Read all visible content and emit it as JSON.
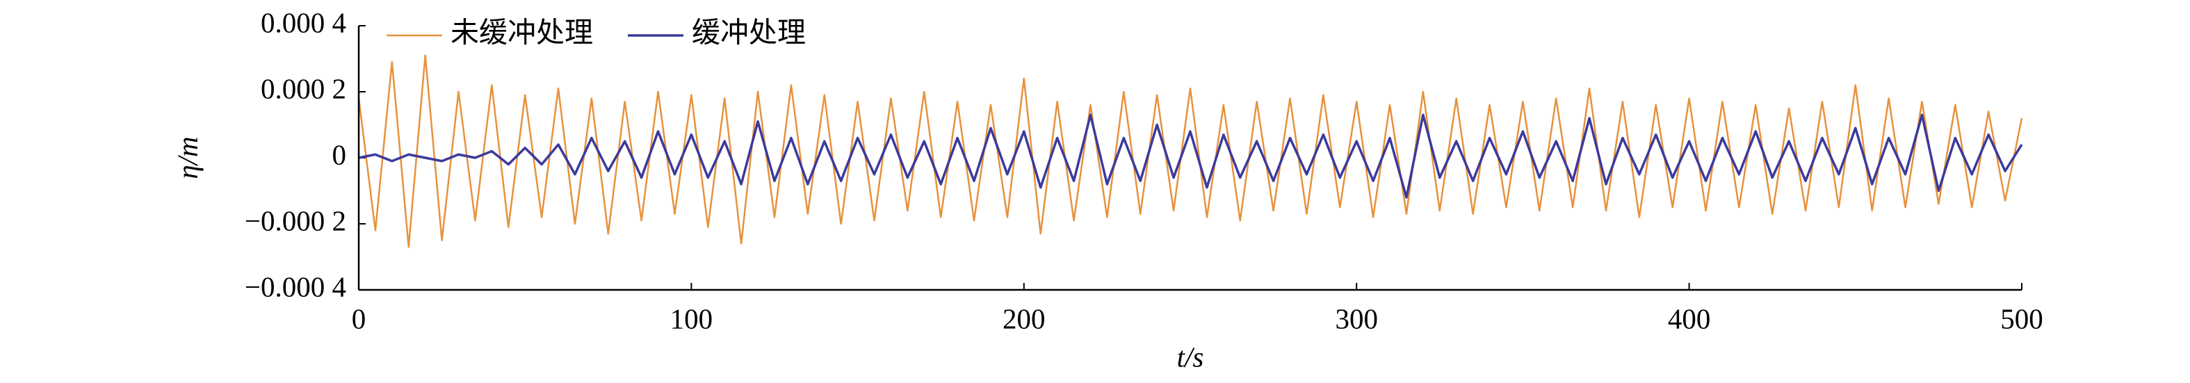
{
  "chart_data": {
    "type": "line",
    "xlabel": "t/s",
    "ylabel": "η/m",
    "x": [
      0,
      5,
      10,
      15,
      20,
      25,
      30,
      35,
      40,
      45,
      50,
      55,
      60,
      65,
      70,
      75,
      80,
      85,
      90,
      95,
      100,
      105,
      110,
      115,
      120,
      125,
      130,
      135,
      140,
      145,
      150,
      155,
      160,
      165,
      170,
      175,
      180,
      185,
      190,
      195,
      200,
      205,
      210,
      215,
      220,
      225,
      230,
      235,
      240,
      245,
      250,
      255,
      260,
      265,
      270,
      275,
      280,
      285,
      290,
      295,
      300,
      305,
      310,
      315,
      320,
      325,
      330,
      335,
      340,
      345,
      350,
      355,
      360,
      365,
      370,
      375,
      380,
      385,
      390,
      395,
      400,
      405,
      410,
      415,
      420,
      425,
      430,
      435,
      440,
      445,
      450,
      455,
      460,
      465,
      470,
      475,
      480,
      485,
      490,
      495,
      500
    ],
    "series": [
      {
        "name": "未缓冲处理",
        "color": "#e8913a",
        "values": [
          0.00018,
          -0.00022,
          0.00029,
          -0.00027,
          0.00031,
          -0.00025,
          0.0002,
          -0.00019,
          0.00022,
          -0.00021,
          0.00019,
          -0.00018,
          0.00021,
          -0.0002,
          0.00018,
          -0.00023,
          0.00017,
          -0.00019,
          0.0002,
          -0.00017,
          0.00019,
          -0.00021,
          0.00018,
          -0.00026,
          0.0002,
          -0.00018,
          0.00022,
          -0.00017,
          0.00019,
          -0.0002,
          0.00017,
          -0.00019,
          0.00018,
          -0.00016,
          0.0002,
          -0.00018,
          0.00017,
          -0.00019,
          0.00016,
          -0.00018,
          0.00024,
          -0.00023,
          0.00017,
          -0.00019,
          0.00016,
          -0.00018,
          0.0002,
          -0.00017,
          0.00019,
          -0.00016,
          0.00021,
          -0.00018,
          0.00016,
          -0.00019,
          0.00017,
          -0.00016,
          0.00018,
          -0.00017,
          0.00019,
          -0.00015,
          0.00017,
          -0.00018,
          0.00016,
          -0.00017,
          0.0002,
          -0.00016,
          0.00018,
          -0.00017,
          0.00016,
          -0.00015,
          0.00017,
          -0.00016,
          0.00018,
          -0.00015,
          0.00021,
          -0.00016,
          0.00017,
          -0.00018,
          0.00016,
          -0.00015,
          0.00018,
          -0.00016,
          0.00017,
          -0.00015,
          0.00016,
          -0.00017,
          0.00015,
          -0.00016,
          0.00017,
          -0.00015,
          0.00022,
          -0.00016,
          0.00018,
          -0.00015,
          0.00017,
          -0.00014,
          0.00016,
          -0.00015,
          0.00014,
          -0.00013,
          0.00012
        ]
      },
      {
        "name": "缓冲处理",
        "color": "#3a3a9e",
        "values": [
          0,
          1e-05,
          -1e-05,
          1e-05,
          0,
          -1e-05,
          1e-05,
          0,
          2e-05,
          -2e-05,
          3e-05,
          -2e-05,
          4e-05,
          -5e-05,
          6e-05,
          -4e-05,
          5e-05,
          -6e-05,
          8e-05,
          -5e-05,
          7e-05,
          -6e-05,
          5e-05,
          -8e-05,
          0.00011,
          -7e-05,
          6e-05,
          -8e-05,
          5e-05,
          -7e-05,
          6e-05,
          -5e-05,
          7e-05,
          -6e-05,
          5e-05,
          -8e-05,
          6e-05,
          -7e-05,
          9e-05,
          -5e-05,
          8e-05,
          -9e-05,
          6e-05,
          -7e-05,
          0.00013,
          -8e-05,
          6e-05,
          -7e-05,
          0.0001,
          -6e-05,
          8e-05,
          -9e-05,
          7e-05,
          -6e-05,
          5e-05,
          -7e-05,
          6e-05,
          -5e-05,
          7e-05,
          -6e-05,
          5e-05,
          -7e-05,
          6e-05,
          -0.00012,
          0.00013,
          -6e-05,
          5e-05,
          -7e-05,
          6e-05,
          -5e-05,
          8e-05,
          -6e-05,
          5e-05,
          -7e-05,
          0.00012,
          -8e-05,
          6e-05,
          -5e-05,
          7e-05,
          -6e-05,
          5e-05,
          -7e-05,
          6e-05,
          -5e-05,
          8e-05,
          -6e-05,
          5e-05,
          -7e-05,
          6e-05,
          -5e-05,
          9e-05,
          -8e-05,
          6e-05,
          -5e-05,
          0.00013,
          -0.0001,
          6e-05,
          -5e-05,
          7e-05,
          -4e-05,
          4e-05
        ]
      }
    ],
    "xlim": [
      0,
      500
    ],
    "xticks": [
      0,
      100,
      200,
      300,
      400,
      500
    ],
    "ylim": [
      -0.0004,
      0.0004
    ],
    "yticks": [
      {
        "value": -0.0004,
        "label": "−0.000 4"
      },
      {
        "value": -0.0002,
        "label": "−0.000 2"
      },
      0,
      {
        "value": 0.0002,
        "label": "0.000 2"
      },
      {
        "value": 0.0004,
        "label": "0.000 4"
      }
    ],
    "grid": false,
    "legend": "top-left"
  }
}
